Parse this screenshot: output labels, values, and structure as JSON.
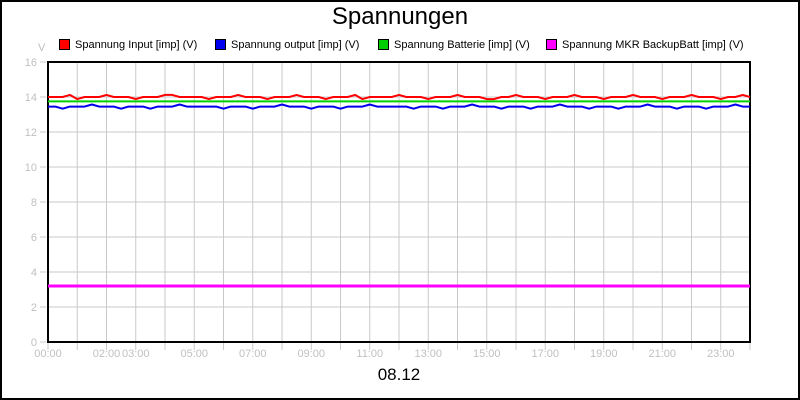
{
  "window": {
    "background": "#ffffff",
    "border_color": "#000000"
  },
  "chart_data": {
    "type": "line",
    "title": "Spannungen",
    "unit_label": "V",
    "date_label": "08.12",
    "xlabel": "",
    "ylabel": "V",
    "xlim_hours": [
      0,
      24
    ],
    "ylim": [
      0,
      16
    ],
    "grid": true,
    "grid_step_hours": 1,
    "grid_color": "#c9c9c9",
    "tick_label_color": "#c0c0c0",
    "frame_color": "#000000",
    "legend_position": "top",
    "y_ticks": [
      0,
      2,
      4,
      6,
      8,
      10,
      12,
      14,
      16
    ],
    "x_tick_hours": [
      0,
      2,
      3,
      5,
      7,
      9,
      11,
      13,
      15,
      17,
      19,
      21,
      23
    ],
    "x_tick_labels": [
      "00:00",
      "02:00",
      "03:00",
      "05:00",
      "07:00",
      "09:00",
      "11:00",
      "13:00",
      "15:00",
      "17:00",
      "19:00",
      "21:00",
      "23:00"
    ],
    "series": [
      {
        "name": "Spannung Input [imp] (V)",
        "color": "#ff0000",
        "line_width": 2,
        "values": [
          14.0,
          14.0,
          14.0,
          14.12,
          13.88,
          14.0,
          14.0,
          14.0,
          14.12,
          14.0,
          14.0,
          14.0,
          13.88,
          14.0,
          14.0,
          14.0,
          14.12,
          14.12,
          14.0,
          14.0,
          14.0,
          14.0,
          13.88,
          14.0,
          14.0,
          14.0,
          14.12,
          14.0,
          14.0,
          14.0,
          13.88,
          14.0,
          14.0,
          14.0,
          14.12,
          14.0,
          14.0,
          14.0,
          13.88,
          14.0,
          14.0,
          14.0,
          14.12,
          13.88,
          14.0,
          14.0,
          14.0,
          14.0,
          14.12,
          14.0,
          14.0,
          14.0,
          13.88,
          14.0,
          14.0,
          14.0,
          14.12,
          14.0,
          14.0,
          14.0,
          13.88,
          13.88,
          14.0,
          14.0,
          14.12,
          14.0,
          14.0,
          14.0,
          13.88,
          14.0,
          14.0,
          14.0,
          14.12,
          14.0,
          14.0,
          14.0,
          13.88,
          14.0,
          14.0,
          14.0,
          14.12,
          14.0,
          14.0,
          14.0,
          13.88,
          14.0,
          14.0,
          14.0,
          14.12,
          14.0,
          14.0,
          14.0,
          13.88,
          14.0,
          14.0,
          14.12,
          14.0
        ]
      },
      {
        "name": "Spannung output [imp] (V)",
        "color": "#0000ee",
        "line_width": 2,
        "values": [
          13.45,
          13.45,
          13.33,
          13.45,
          13.45,
          13.45,
          13.57,
          13.45,
          13.45,
          13.45,
          13.33,
          13.45,
          13.45,
          13.45,
          13.33,
          13.45,
          13.45,
          13.45,
          13.57,
          13.45,
          13.45,
          13.45,
          13.45,
          13.45,
          13.33,
          13.45,
          13.45,
          13.45,
          13.33,
          13.45,
          13.45,
          13.45,
          13.57,
          13.45,
          13.45,
          13.45,
          13.33,
          13.45,
          13.45,
          13.45,
          13.33,
          13.45,
          13.45,
          13.45,
          13.57,
          13.45,
          13.45,
          13.45,
          13.45,
          13.45,
          13.33,
          13.45,
          13.45,
          13.45,
          13.33,
          13.45,
          13.45,
          13.45,
          13.57,
          13.45,
          13.45,
          13.45,
          13.33,
          13.45,
          13.45,
          13.45,
          13.33,
          13.45,
          13.45,
          13.45,
          13.57,
          13.45,
          13.45,
          13.45,
          13.33,
          13.45,
          13.45,
          13.45,
          13.33,
          13.45,
          13.45,
          13.45,
          13.57,
          13.45,
          13.45,
          13.45,
          13.33,
          13.45,
          13.45,
          13.45,
          13.33,
          13.45,
          13.45,
          13.45,
          13.57,
          13.45,
          13.45
        ]
      },
      {
        "name": "Spannung Batterie [imp] (V)",
        "color": "#00d000",
        "line_width": 2,
        "values": [
          13.75,
          13.75
        ]
      },
      {
        "name": "Spannung MKR BackupBatt [imp] (V)",
        "color": "#ff00ff",
        "line_width": 3,
        "values": [
          3.2,
          3.2
        ]
      }
    ]
  }
}
